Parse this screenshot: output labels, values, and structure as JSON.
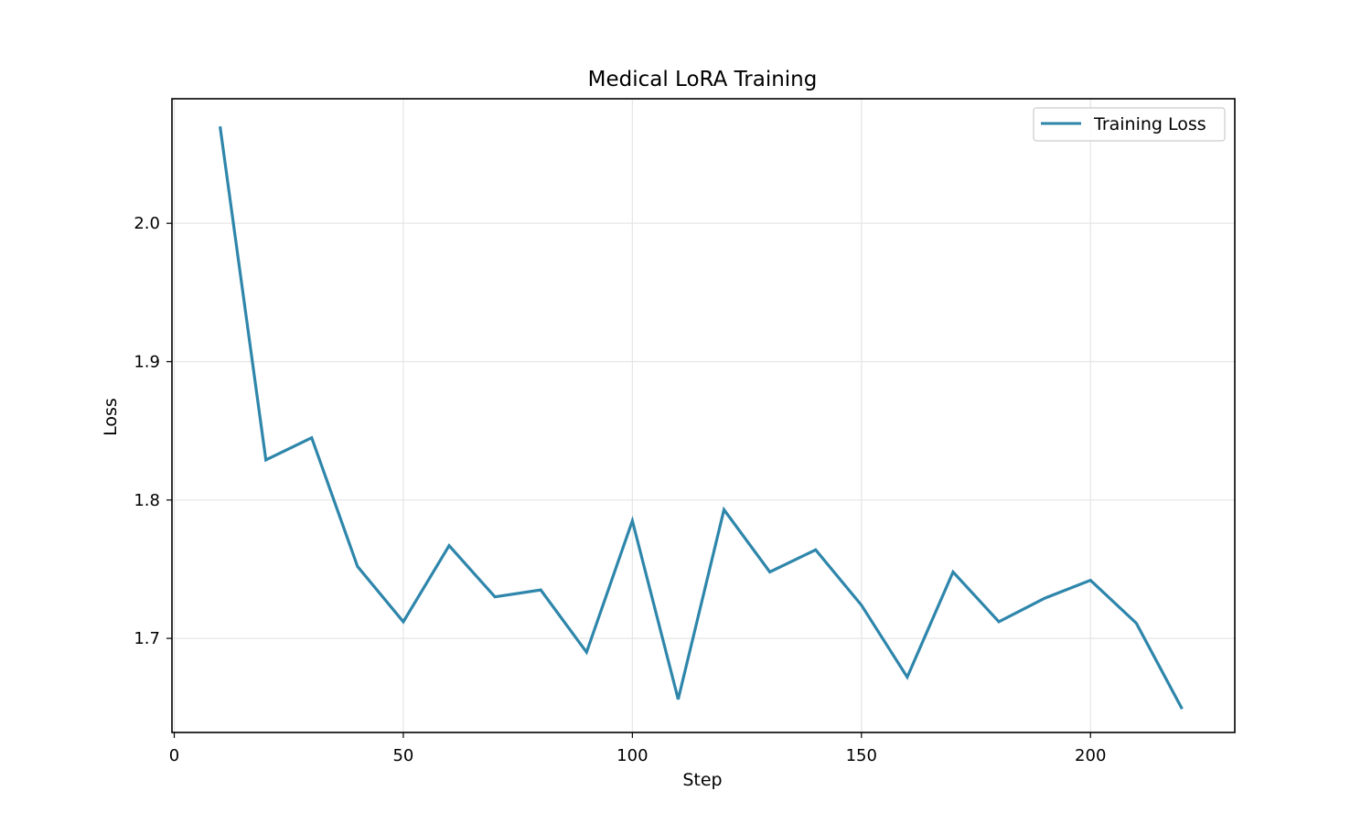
{
  "chart_data": {
    "type": "line",
    "title": "Medical LoRA Training",
    "xlabel": "Step",
    "ylabel": "Loss",
    "xlim": [
      -0.5,
      231.5
    ],
    "ylim": [
      1.632,
      2.09
    ],
    "xticks": [
      0,
      50,
      100,
      150,
      200
    ],
    "yticks": [
      1.7,
      1.8,
      1.9,
      2.0
    ],
    "xtick_labels": [
      "0",
      "50",
      "100",
      "150",
      "200"
    ],
    "ytick_labels": [
      "1.7",
      "1.8",
      "1.9",
      "2.0"
    ],
    "grid": true,
    "legend_position": "top-right",
    "series": [
      {
        "name": "Training Loss",
        "color": "#2e86ab",
        "x": [
          10,
          20,
          30,
          40,
          50,
          60,
          70,
          80,
          90,
          100,
          110,
          120,
          130,
          140,
          150,
          160,
          170,
          180,
          190,
          200,
          210,
          220
        ],
        "y": [
          2.07,
          1.829,
          1.845,
          1.752,
          1.712,
          1.767,
          1.73,
          1.735,
          1.69,
          1.785,
          1.656,
          1.793,
          1.748,
          1.764,
          1.724,
          1.672,
          1.748,
          1.712,
          1.729,
          1.742,
          1.711,
          1.649
        ]
      }
    ]
  }
}
